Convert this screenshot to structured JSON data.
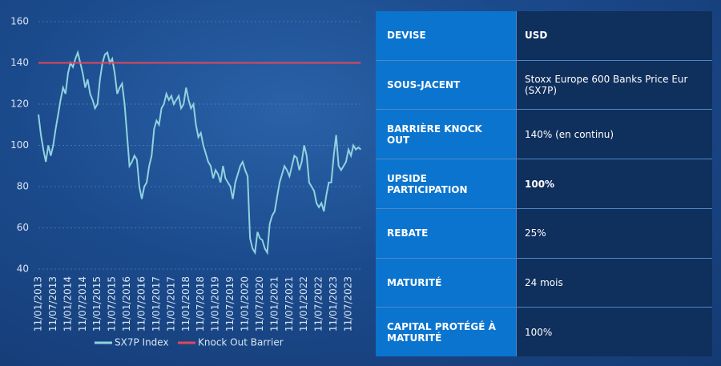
{
  "chart_data": {
    "type": "line",
    "x": [
      "11/01/2013",
      "11/02/2013",
      "11/03/2013",
      "11/04/2013",
      "11/05/2013",
      "11/06/2013",
      "11/07/2013",
      "11/08/2013",
      "11/09/2013",
      "11/10/2013",
      "11/11/2013",
      "11/12/2013",
      "11/01/2014",
      "11/02/2014",
      "11/03/2014",
      "11/04/2014",
      "11/05/2014",
      "11/06/2014",
      "11/07/2014",
      "11/08/2014",
      "11/09/2014",
      "11/10/2014",
      "11/11/2014",
      "11/12/2014",
      "11/01/2015",
      "11/02/2015",
      "11/03/2015",
      "11/04/2015",
      "11/05/2015",
      "11/06/2015",
      "11/07/2015",
      "11/08/2015",
      "11/09/2015",
      "11/10/2015",
      "11/11/2015",
      "11/12/2015",
      "11/01/2016",
      "11/02/2016",
      "11/03/2016",
      "11/04/2016",
      "11/05/2016",
      "11/06/2016",
      "11/07/2016",
      "11/08/2016",
      "11/09/2016",
      "11/10/2016",
      "11/11/2016",
      "11/12/2016",
      "11/01/2017",
      "11/02/2017",
      "11/03/2017",
      "11/04/2017",
      "11/05/2017",
      "11/06/2017",
      "11/07/2017",
      "11/08/2017",
      "11/09/2017",
      "11/10/2017",
      "11/11/2017",
      "11/12/2017",
      "11/01/2018",
      "11/02/2018",
      "11/03/2018",
      "11/04/2018",
      "11/05/2018",
      "11/06/2018",
      "11/07/2018",
      "11/08/2018",
      "11/09/2018",
      "11/10/2018",
      "11/11/2018",
      "11/12/2018",
      "11/01/2019",
      "11/02/2019",
      "11/03/2019",
      "11/04/2019",
      "11/05/2019",
      "11/06/2019",
      "11/07/2019",
      "11/08/2019",
      "11/09/2019",
      "11/10/2019",
      "11/11/2019",
      "11/12/2019",
      "11/01/2020",
      "11/02/2020",
      "11/03/2020",
      "11/04/2020",
      "11/05/2020",
      "11/06/2020",
      "11/07/2020",
      "11/08/2020",
      "11/09/2020",
      "11/10/2020",
      "11/11/2020",
      "11/12/2020",
      "11/01/2021",
      "11/02/2021",
      "11/03/2021",
      "11/04/2021",
      "11/05/2021",
      "11/06/2021",
      "11/07/2021",
      "11/08/2021",
      "11/09/2021",
      "11/10/2021",
      "11/11/2021",
      "11/12/2021",
      "11/01/2022",
      "11/02/2022",
      "11/03/2022",
      "11/04/2022",
      "11/05/2022",
      "11/06/2022",
      "11/07/2022",
      "11/08/2022",
      "11/09/2022",
      "11/10/2022",
      "11/11/2022",
      "11/12/2022",
      "11/01/2023",
      "11/02/2023",
      "11/03/2023",
      "11/04/2023",
      "11/05/2023",
      "11/06/2023",
      "11/07/2023",
      "11/08/2023",
      "11/09/2023",
      "11/10/2023",
      "11/11/2023",
      "11/12/2023"
    ],
    "xticks": [
      "11/01/2013",
      "11/07/2013",
      "11/01/2014",
      "11/07/2014",
      "11/01/2015",
      "11/07/2015",
      "11/01/2016",
      "11/07/2016",
      "11/01/2017",
      "11/07/2017",
      "11/01/2018",
      "11/07/2018",
      "11/01/2019",
      "11/07/2019",
      "11/01/2020",
      "11/07/2020",
      "11/01/2021",
      "11/07/2021",
      "11/01/2022",
      "11/07/2022",
      "11/01/2023",
      "11/07/2023"
    ],
    "series": [
      {
        "name": "SX7P Index",
        "color": "#8fd3de",
        "values": [
          115,
          105,
          98,
          92,
          100,
          95,
          100,
          108,
          115,
          122,
          128,
          125,
          135,
          140,
          138,
          142,
          145,
          140,
          135,
          128,
          132,
          125,
          122,
          118,
          120,
          132,
          140,
          144,
          145,
          140,
          142,
          135,
          125,
          128,
          130,
          120,
          105,
          90,
          92,
          95,
          93,
          80,
          74,
          80,
          82,
          90,
          95,
          108,
          112,
          110,
          118,
          120,
          125,
          122,
          124,
          120,
          122,
          124,
          118,
          120,
          128,
          122,
          118,
          120,
          110,
          104,
          106,
          100,
          96,
          92,
          90,
          84,
          88,
          86,
          82,
          90,
          84,
          82,
          80,
          74,
          82,
          86,
          90,
          92,
          88,
          85,
          55,
          50,
          48,
          58,
          55,
          54,
          50,
          48,
          62,
          66,
          68,
          75,
          82,
          86,
          90,
          88,
          85,
          90,
          95,
          94,
          88,
          92,
          100,
          95,
          82,
          80,
          78,
          72,
          70,
          72,
          68,
          76,
          82,
          82,
          95,
          105,
          90,
          88,
          90,
          92,
          98,
          95,
          100,
          98,
          99,
          98
        ]
      }
    ],
    "barrier": {
      "name": "Knock Out Barrier",
      "color": "#e0475a",
      "value": 140
    },
    "ylim": [
      40,
      160
    ],
    "yticks": [
      40,
      60,
      80,
      100,
      120,
      140,
      160
    ],
    "grid": true
  },
  "table": {
    "rows": [
      {
        "label": "DEVISE",
        "value": "USD",
        "bold": true
      },
      {
        "label": "SOUS-JACENT",
        "value": "Stoxx Europe 600 Banks Price Eur (SX7P)",
        "bold": false
      },
      {
        "label": "BARRIÈRE KNOCK OUT",
        "value": "140% (en continu)",
        "bold": false
      },
      {
        "label": "UPSIDE PARTICIPATION",
        "value": "100%",
        "bold": true
      },
      {
        "label": "REBATE",
        "value": "25%",
        "bold": false
      },
      {
        "label": "MATURITÉ",
        "value": "24 mois",
        "bold": false
      },
      {
        "label": "CAPITAL PROTÉGÉ À MATURITÉ",
        "value": "100%",
        "bold": false
      }
    ]
  }
}
